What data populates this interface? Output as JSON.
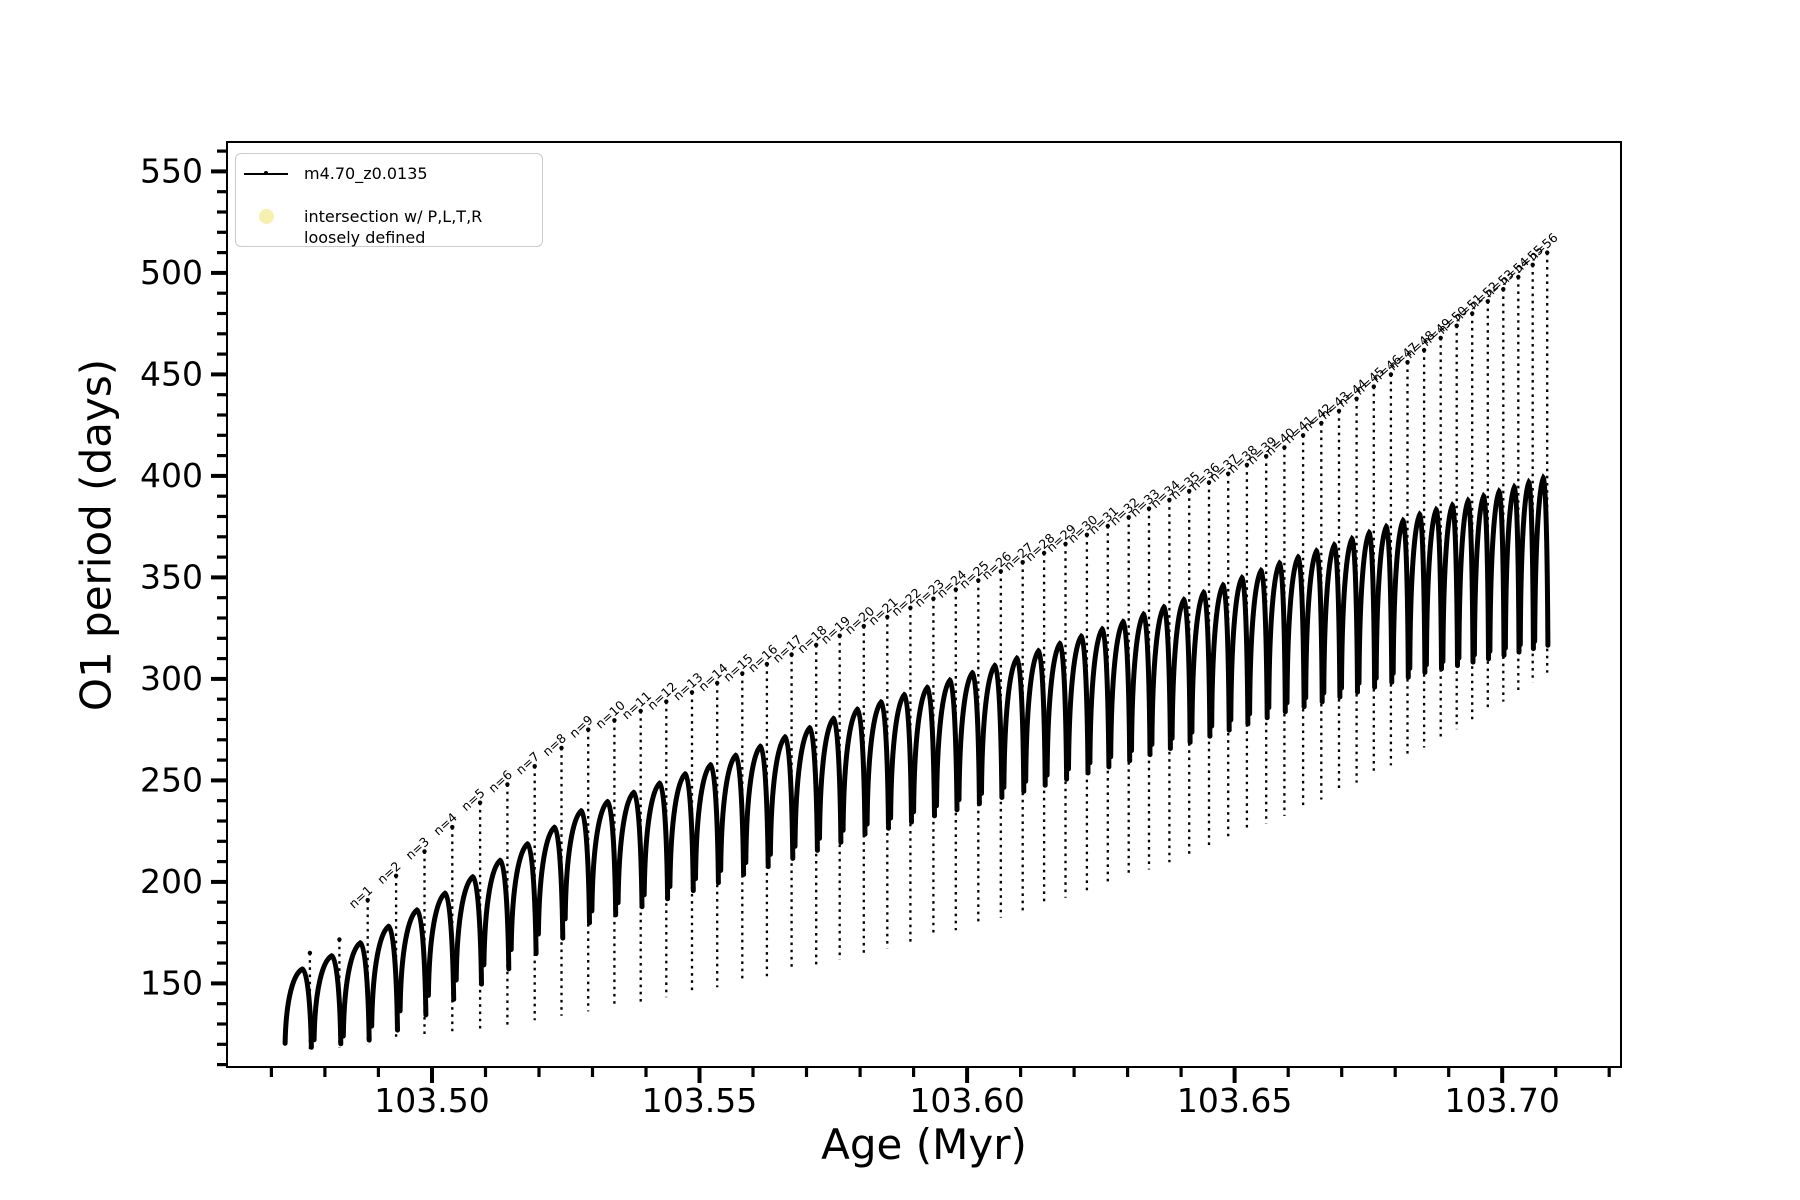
{
  "figure": {
    "background": "#ffffff",
    "series_color": "#000000",
    "spine_color": "#000000"
  },
  "chart_data": {
    "type": "line",
    "title": "",
    "xlabel": "Age (Myr)",
    "ylabel": "O1 period (days)",
    "xlim": [
      103.4617,
      103.7222
    ],
    "ylim": [
      108.8,
      564.5
    ],
    "grid": false,
    "legend_position": "upper-left",
    "x_ticks_major": [
      103.5,
      103.55,
      103.6,
      103.65,
      103.7
    ],
    "x_tick_labels": [
      "103.50",
      "103.55",
      "103.60",
      "103.65",
      "103.70"
    ],
    "x_ticks_minor_step": 0.01,
    "y_ticks_major": [
      150,
      200,
      250,
      300,
      350,
      400,
      450,
      500,
      550
    ],
    "y_ticks_minor_step": 10,
    "annotation_prefix": "n=",
    "legend": {
      "series_label": "m4.70_z0.0135",
      "intersection_label_line1": "intersection w/ P,L,T,R",
      "intersection_label_line2": "loosely defined",
      "intersection_marker_color": "#f6efad"
    },
    "cycles_format": [
      "n",
      "age_myr",
      "spike_top_days",
      "arc_top_days",
      "min_days"
    ],
    "cycles": [
      [
        null,
        103.4718,
        158.0,
        150.5,
        114.8
      ],
      [
        null,
        103.4772,
        165.0,
        157.1,
        116.5
      ],
      [
        null,
        103.4827,
        171.6,
        163.6,
        118.2
      ],
      [
        1,
        103.488,
        191.0,
        170.0,
        120.0
      ],
      [
        2,
        103.4933,
        203.0,
        178.1,
        121.8
      ],
      [
        3,
        103.4986,
        215.0,
        186.2,
        123.7
      ],
      [
        4,
        103.5038,
        227.0,
        194.4,
        125.6
      ],
      [
        5,
        103.509,
        239.0,
        202.5,
        127.6
      ],
      [
        6,
        103.5141,
        248.0,
        210.6,
        129.7
      ],
      [
        7,
        103.5192,
        257.0,
        218.7,
        131.8
      ],
      [
        8,
        103.5242,
        266.0,
        226.9,
        134.0
      ],
      [
        9,
        103.5292,
        275.0,
        235.0,
        136.2
      ],
      [
        10,
        103.5341,
        279.6,
        239.5,
        138.5
      ],
      [
        11,
        103.539,
        284.2,
        244.1,
        140.8
      ],
      [
        12,
        103.5438,
        288.8,
        248.6,
        143.2
      ],
      [
        13,
        103.5486,
        293.4,
        253.2,
        145.6
      ],
      [
        14,
        103.5533,
        298.0,
        257.7,
        148.1
      ],
      [
        15,
        103.558,
        302.7,
        262.3,
        150.7
      ],
      [
        16,
        103.5626,
        307.3,
        266.8,
        153.3
      ],
      [
        17,
        103.5672,
        312.0,
        271.4,
        156.0
      ],
      [
        18,
        103.5718,
        316.7,
        275.9,
        158.7
      ],
      [
        19,
        103.5762,
        321.3,
        280.5,
        161.5
      ],
      [
        20,
        103.5807,
        326.0,
        285.0,
        164.3
      ],
      [
        21,
        103.5851,
        330.5,
        288.6,
        167.2
      ],
      [
        22,
        103.5894,
        335.0,
        292.2,
        170.2
      ],
      [
        23,
        103.5937,
        339.5,
        295.8,
        173.1
      ],
      [
        24,
        103.5979,
        344.0,
        299.4,
        176.2
      ],
      [
        25,
        103.6021,
        348.5,
        303.0,
        179.3
      ],
      [
        26,
        103.6063,
        353.0,
        306.6,
        182.4
      ],
      [
        27,
        103.6104,
        357.5,
        310.2,
        185.6
      ],
      [
        28,
        103.6144,
        362.0,
        313.8,
        188.9
      ],
      [
        29,
        103.6184,
        366.5,
        317.4,
        192.2
      ],
      [
        30,
        103.6224,
        371.0,
        321.0,
        195.6
      ],
      [
        31,
        103.6263,
        375.3,
        324.6,
        199.0
      ],
      [
        32,
        103.6302,
        379.6,
        328.2,
        202.5
      ],
      [
        33,
        103.634,
        383.9,
        331.8,
        206.1
      ],
      [
        34,
        103.6378,
        388.2,
        335.4,
        209.7
      ],
      [
        35,
        103.6415,
        392.5,
        339.0,
        213.4
      ],
      [
        36,
        103.6452,
        396.8,
        342.6,
        217.1
      ],
      [
        37,
        103.6488,
        401.1,
        346.2,
        220.9
      ],
      [
        38,
        103.6523,
        405.4,
        349.8,
        224.7
      ],
      [
        39,
        103.6559,
        409.7,
        353.4,
        228.6
      ],
      [
        40,
        103.6593,
        414.0,
        357.0,
        232.5
      ],
      [
        41,
        103.6628,
        420.0,
        360.0,
        236.6
      ],
      [
        42,
        103.6662,
        426.0,
        363.0,
        240.6
      ],
      [
        43,
        103.6695,
        432.0,
        366.0,
        244.7
      ],
      [
        44,
        103.6728,
        438.0,
        369.0,
        248.9
      ],
      [
        45,
        103.676,
        444.0,
        372.0,
        253.1
      ],
      [
        46,
        103.6792,
        450.0,
        375.0,
        257.4
      ],
      [
        47,
        103.6823,
        456.0,
        378.0,
        261.8
      ],
      [
        48,
        103.6854,
        462.0,
        381.0,
        266.2
      ],
      [
        49,
        103.6885,
        468.0,
        383.3,
        270.7
      ],
      [
        50,
        103.6915,
        474.0,
        385.5,
        275.2
      ],
      [
        51,
        103.6944,
        480.0,
        387.8,
        279.5
      ],
      [
        52,
        103.6973,
        486.0,
        390.0,
        284.1
      ],
      [
        53,
        103.7002,
        492.0,
        392.3,
        288.8
      ],
      [
        54,
        103.703,
        498.0,
        394.5,
        293.5
      ],
      [
        55,
        103.7057,
        504.0,
        396.8,
        298.2
      ],
      [
        56,
        103.7084,
        510.0,
        399.0,
        303.1
      ]
    ]
  }
}
